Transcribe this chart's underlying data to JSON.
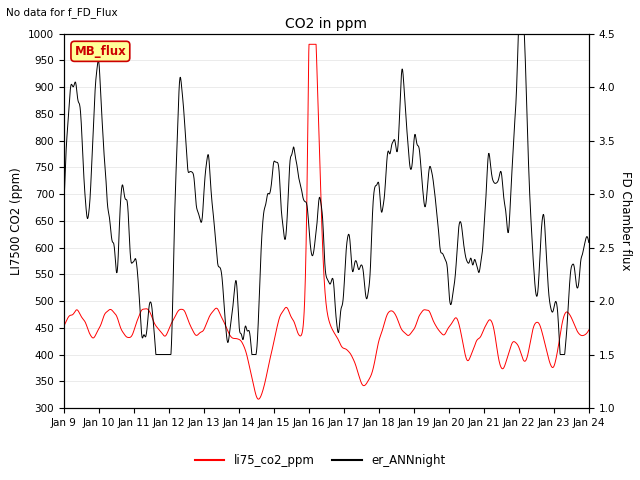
{
  "title": "CO2 in ppm",
  "top_left_text": "No data for f_FD_Flux",
  "ylabel_left": "LI7500 CO2 (ppm)",
  "ylabel_right": "FD Chamber flux",
  "ylim_left": [
    300,
    1000
  ],
  "ylim_right": [
    1.0,
    4.5
  ],
  "yticks_left": [
    300,
    350,
    400,
    450,
    500,
    550,
    600,
    650,
    700,
    750,
    800,
    850,
    900,
    950,
    1000
  ],
  "yticks_right": [
    1.0,
    1.5,
    2.0,
    2.5,
    3.0,
    3.5,
    4.0,
    4.5
  ],
  "xtick_labels": [
    "Jan 9",
    "Jan 10",
    "Jan 11",
    "Jan 12",
    "Jan 13",
    "Jan 14",
    "Jan 15",
    "Jan 16",
    "Jan 17",
    "Jan 18",
    "Jan 19",
    "Jan 20",
    "Jan 21",
    "Jan 22",
    "Jan 23",
    "Jan 24"
  ],
  "legend_entries": [
    {
      "label": "li75_co2_ppm",
      "color": "#ff0000",
      "lw": 1.5
    },
    {
      "label": "er_ANNnight",
      "color": "#000000",
      "lw": 1.5
    }
  ],
  "mb_flux_box": {
    "text": "MB_flux",
    "facecolor": "#ffff99",
    "edgecolor": "#cc0000",
    "textcolor": "#cc0000"
  },
  "line_red_color": "#ff0000",
  "line_black_color": "#000000",
  "background_color": "#ffffff",
  "grid_color": "#e8e8e8",
  "n_days": 15,
  "n_points": 2160,
  "figsize": [
    6.4,
    4.8
  ],
  "dpi": 100
}
